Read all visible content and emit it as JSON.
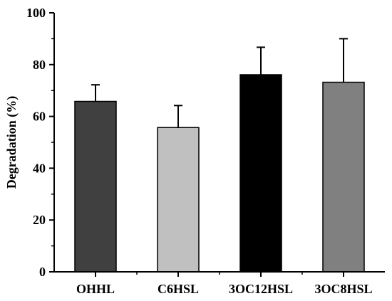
{
  "chart_data": {
    "type": "bar",
    "categories": [
      "OHHL",
      "C6HSL",
      "3OC12HSL",
      "3OC8HSL"
    ],
    "values": [
      65.8,
      55.7,
      76.1,
      73.2
    ],
    "errors": [
      6.4,
      8.5,
      10.6,
      16.8
    ],
    "colors": [
      "#404040",
      "#c0c0c0",
      "#000000",
      "#808080"
    ],
    "ylabel": "Degradation (%)",
    "xlabel": "",
    "ylim": [
      0,
      100
    ],
    "yticks": [
      "0",
      "20",
      "40",
      "60",
      "80",
      "100"
    ],
    "minor_ticks": true,
    "grid": false
  }
}
